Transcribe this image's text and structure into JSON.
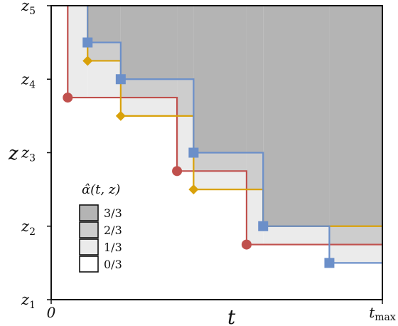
{
  "axes": {
    "x_title": "t",
    "y_title": "z",
    "x_ticks": [
      {
        "x": 0,
        "label": "0",
        "sub": ""
      },
      {
        "x": 1,
        "label": "t",
        "sub": "max"
      }
    ],
    "y_ticks": [
      {
        "level": 1,
        "label": "z",
        "sub": "1"
      },
      {
        "level": 2,
        "label": "z",
        "sub": "2"
      },
      {
        "level": 3,
        "label": "z",
        "sub": "3"
      },
      {
        "level": 4,
        "label": "z",
        "sub": "4"
      },
      {
        "level": 5,
        "label": "z",
        "sub": "5"
      }
    ]
  },
  "legend": {
    "title": "α̂(t, z)",
    "entries": [
      {
        "label": "3/3",
        "fill": "#b4b4b4"
      },
      {
        "label": "2/3",
        "fill": "#cdcdcd"
      },
      {
        "label": "1/3",
        "fill": "#ebebeb"
      },
      {
        "label": "0/3",
        "fill": "#ffffff"
      }
    ]
  },
  "chart_data": {
    "type": "step",
    "xlim": [
      0,
      1
    ],
    "ylim": [
      1,
      5
    ],
    "series": [
      {
        "color": "#c0504d",
        "marker": "circle",
        "points": [
          [
            0.05,
            3.75
          ],
          [
            0.38,
            2.75
          ],
          [
            0.59,
            1.75
          ]
        ]
      },
      {
        "color": "#d9a10a",
        "marker": "diamond",
        "points": [
          [
            0.11,
            4.25
          ],
          [
            0.21,
            3.5
          ],
          [
            0.43,
            2.5
          ],
          [
            0.64,
            2.0
          ]
        ]
      },
      {
        "color": "#6b8fc9",
        "marker": "square",
        "points": [
          [
            0.11,
            4.5
          ],
          [
            0.21,
            4.0
          ],
          [
            0.43,
            3.0
          ],
          [
            0.64,
            2.0
          ],
          [
            0.84,
            1.5
          ]
        ]
      }
    ]
  }
}
